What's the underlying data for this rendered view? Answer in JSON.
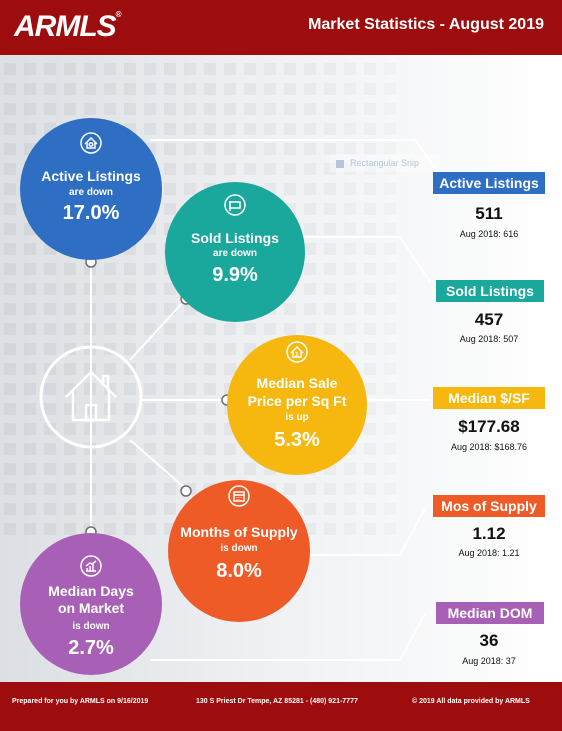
{
  "header": {
    "logo": "ARMLS",
    "logo_mark": "®",
    "title": "Market Statistics - August 2019"
  },
  "snip_label": "Rectangular Snip",
  "stats": [
    {
      "name": "Active Listings",
      "change_word": "are down",
      "pct": "17.0%",
      "tag": "Active Listings",
      "value": "511",
      "prev": "Aug 2018: 616",
      "color": "#2e6fc4",
      "tag_color": "#2e6fc4",
      "icon": "house-gear-icon"
    },
    {
      "name": "Sold Listings",
      "change_word": "are down",
      "pct": "9.9%",
      "tag": "Sold Listings",
      "value": "457",
      "prev": "Aug 2018: 507",
      "color": "#1aa79c",
      "tag_color": "#1aa79c",
      "icon": "sold-sign-icon"
    },
    {
      "name": "Median Sale Price per Sq Ft",
      "name_l1": "Median Sale",
      "name_l2": "Price per Sq Ft",
      "change_word": "is up",
      "pct": "5.3%",
      "tag": "Median $/SF",
      "value": "$177.68",
      "prev": "Aug 2018: $168.76",
      "color": "#f6b80f",
      "tag_color": "#f6b80f",
      "icon": "house-dollar-icon"
    },
    {
      "name": "Months of Supply",
      "change_word": "is down",
      "pct": "8.0%",
      "tag": "Mos of Supply",
      "value": "1.12",
      "prev": "Aug 2018: 1.21",
      "color": "#ef5b27",
      "tag_color": "#ef5b27",
      "icon": "calendar-icon"
    },
    {
      "name": "Median Days on Market",
      "name_l1": "Median Days",
      "name_l2": "on Market",
      "change_word": "is down",
      "pct": "2.7%",
      "tag": "Median DOM",
      "value": "36",
      "prev": "Aug 2018: 37",
      "color": "#a860b6",
      "tag_color": "#a860b6",
      "icon": "chart-icon"
    }
  ],
  "center_icon": "house-icon",
  "footer": {
    "prepared": "Prepared for you by ARMLS on 9/16/2019",
    "address": "130 S Priest Dr  Tempe, AZ 85281 - (480) 921-7777",
    "copyright": "© 2019 All data provided by ARMLS"
  }
}
